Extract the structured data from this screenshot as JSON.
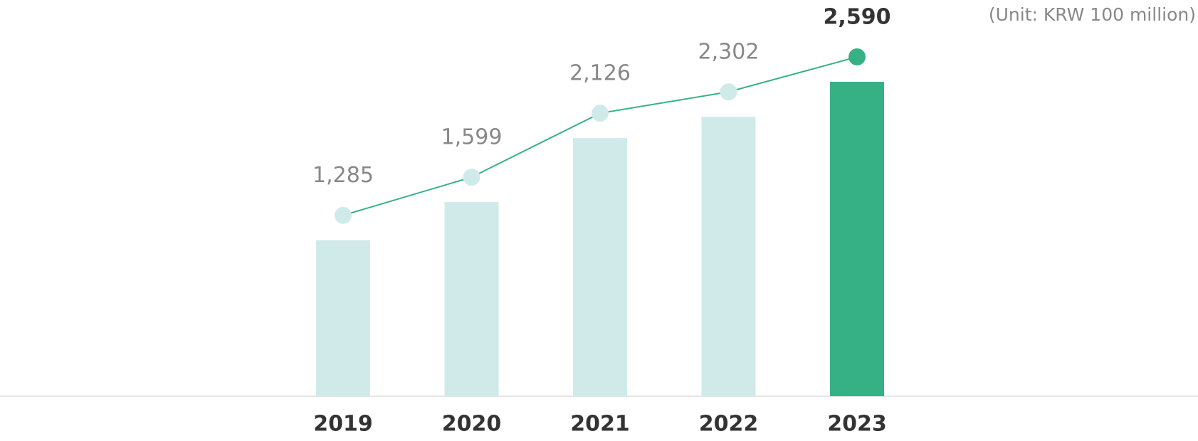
{
  "chart_data": {
    "type": "bar_line",
    "unit_note": "(Unit: KRW 100 million)",
    "categories": [
      "2019",
      "2020",
      "2021",
      "2022",
      "2023"
    ],
    "values": [
      1285,
      1599,
      2126,
      2302,
      2590
    ],
    "value_labels": [
      "1,285",
      "1,599",
      "2,126",
      "2,302",
      "2,590"
    ],
    "colors": [
      "#d0eaea",
      "#d0eaea",
      "#d0eaea",
      "#d0eaea",
      "#36b185"
    ],
    "line_color": "#36b185"
  }
}
